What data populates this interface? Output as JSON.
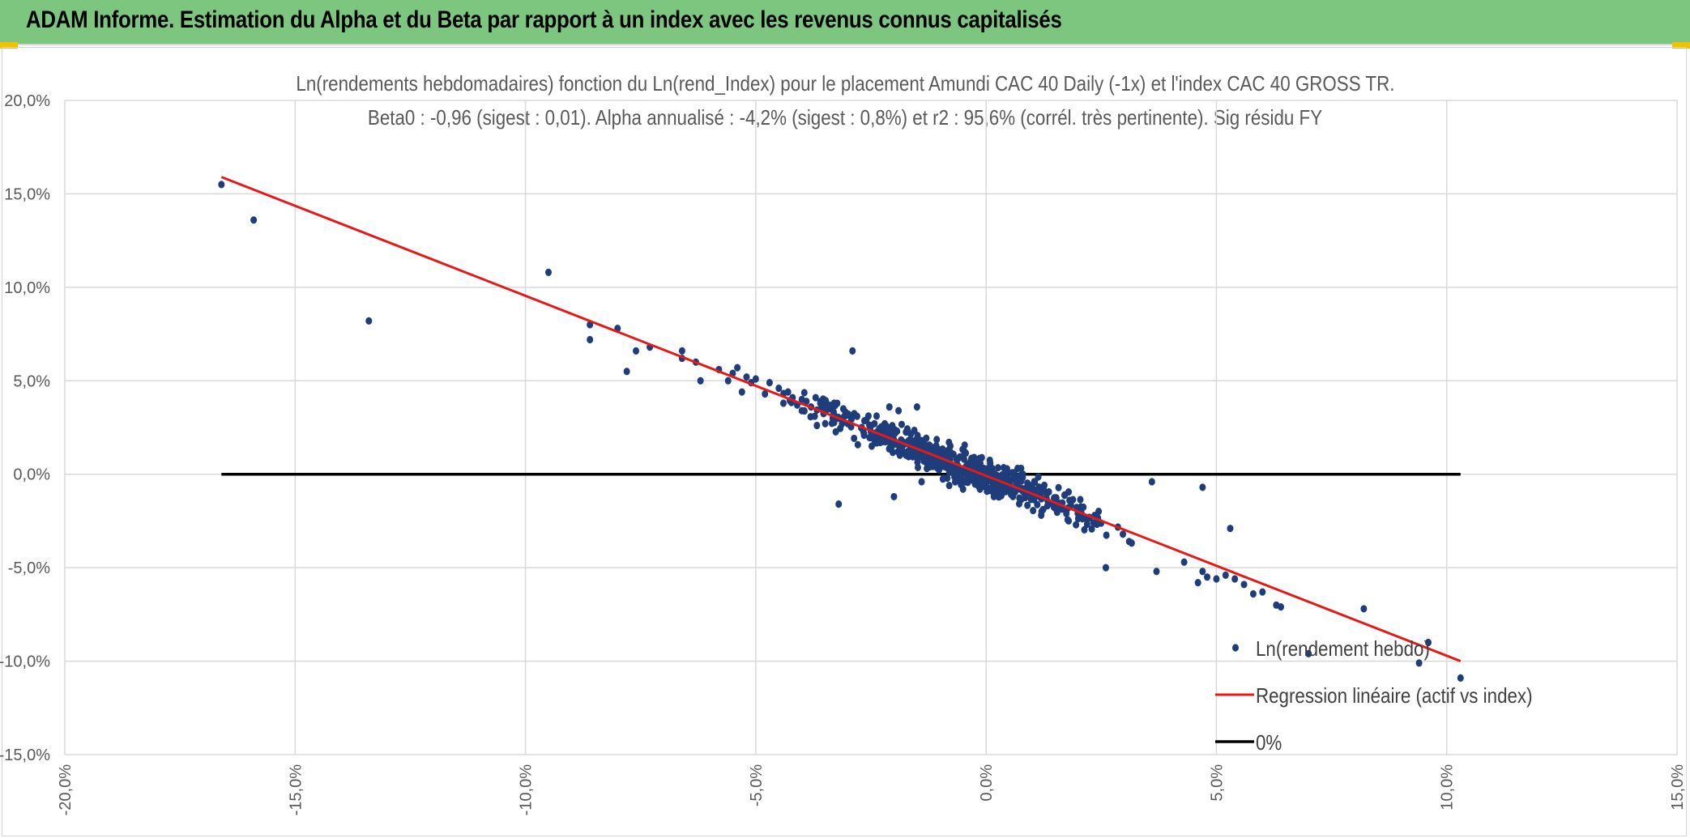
{
  "banner": {
    "title": "ADAM Informe. Estimation du Alpha et du Beta par rapport à un index avec les revenus connus capitalisés",
    "background": "#7dc67f",
    "accent": "#f2c200"
  },
  "chart_data": {
    "type": "scatter",
    "title": "Ln(rendements hebdomadaires) fonction du Ln(rend_Index) pour le placement Amundi CAC 40 Daily (-1x) et l'index CAC 40 GROSS TR.",
    "subtitle": "Beta0 : -0,96 (sigest : 0,01). Alpha annualisé : -4,2% (sigest : 0,8%) et r2 : 95,6% (corrél. très pertinente). Sig résidu FY",
    "xlabel": "",
    "ylabel": "",
    "xlim": [
      -0.2,
      0.15
    ],
    "ylim": [
      -0.15,
      0.2
    ],
    "x_tick_labels": [
      "-20,0%",
      "-15,0%",
      "-10,0%",
      "-5,0%",
      "0,0%",
      "5,0%",
      "10,0%",
      "15,0%"
    ],
    "y_tick_labels": [
      "20,0%",
      "15,0%",
      "10,0%",
      "5,0%",
      "0,0%",
      "-5,0%",
      "-10,0%",
      "-15,0%"
    ],
    "grid": true,
    "legend_position": "bottom-right",
    "series": [
      {
        "name": "Ln(rendement hebdo)",
        "kind": "scatter",
        "color": "#1f3d7a",
        "points": [
          [
            -0.166,
            0.155
          ],
          [
            -0.159,
            0.136
          ],
          [
            -0.134,
            0.082
          ],
          [
            -0.095,
            0.108
          ],
          [
            -0.086,
            0.08
          ],
          [
            -0.086,
            0.072
          ],
          [
            -0.08,
            0.078
          ],
          [
            -0.076,
            0.066
          ],
          [
            -0.078,
            0.055
          ],
          [
            -0.073,
            0.068
          ],
          [
            -0.066,
            0.066
          ],
          [
            -0.066,
            0.062
          ],
          [
            -0.063,
            0.06
          ],
          [
            -0.062,
            0.05
          ],
          [
            -0.058,
            0.056
          ],
          [
            -0.056,
            0.05
          ],
          [
            -0.055,
            0.054
          ],
          [
            -0.054,
            0.057
          ],
          [
            -0.053,
            0.044
          ],
          [
            -0.052,
            0.052
          ],
          [
            -0.051,
            0.049
          ],
          [
            -0.05,
            0.051
          ],
          [
            -0.048,
            0.043
          ],
          [
            -0.047,
            0.049
          ],
          [
            -0.045,
            0.046
          ],
          [
            -0.044,
            0.038
          ],
          [
            -0.043,
            0.044
          ],
          [
            -0.042,
            0.041
          ],
          [
            -0.041,
            0.037
          ],
          [
            -0.04,
            0.04
          ],
          [
            -0.04,
            0.034
          ],
          [
            -0.039,
            0.039
          ],
          [
            -0.038,
            0.036
          ],
          [
            -0.037,
            0.041
          ],
          [
            -0.036,
            0.038
          ],
          [
            -0.035,
            0.034
          ],
          [
            -0.034,
            0.037
          ],
          [
            -0.033,
            0.032
          ],
          [
            -0.033,
            0.038
          ],
          [
            -0.032,
            0.03
          ],
          [
            -0.031,
            0.035
          ],
          [
            -0.03,
            0.027
          ],
          [
            -0.03,
            0.032
          ],
          [
            -0.029,
            0.066
          ],
          [
            -0.028,
            0.031
          ],
          [
            -0.027,
            0.025
          ],
          [
            -0.026,
            0.029
          ],
          [
            -0.025,
            0.026
          ],
          [
            -0.024,
            0.022
          ],
          [
            -0.032,
            -0.016
          ],
          [
            -0.022,
            0.027
          ],
          [
            -0.021,
            0.036
          ],
          [
            -0.02,
            -0.012
          ],
          [
            -0.019,
            0.034
          ],
          [
            -0.015,
            0.036
          ],
          [
            -0.014,
            -0.004
          ],
          [
            -0.012,
            0.005
          ],
          [
            -0.008,
            -0.006
          ],
          [
            -0.005,
            -0.008
          ],
          [
            0.008,
            0.0
          ],
          [
            0.01,
            -0.009
          ],
          [
            0.036,
            -0.004
          ],
          [
            0.047,
            -0.007
          ],
          [
            0.026,
            -0.05
          ],
          [
            0.037,
            -0.052
          ],
          [
            0.043,
            -0.047
          ],
          [
            0.046,
            -0.058
          ],
          [
            0.047,
            -0.052
          ],
          [
            0.048,
            -0.055
          ],
          [
            0.05,
            -0.056
          ],
          [
            0.052,
            -0.054
          ],
          [
            0.053,
            -0.029
          ],
          [
            0.054,
            -0.056
          ],
          [
            0.056,
            -0.059
          ],
          [
            0.058,
            -0.064
          ],
          [
            0.06,
            -0.063
          ],
          [
            0.063,
            -0.07
          ],
          [
            0.064,
            -0.071
          ],
          [
            0.07,
            -0.096
          ],
          [
            0.082,
            -0.072
          ],
          [
            0.094,
            -0.101
          ],
          [
            0.096,
            -0.09
          ],
          [
            0.103,
            -0.109
          ]
        ]
      },
      {
        "name": "Regression linéaire (actif vs index)",
        "kind": "line",
        "color": "#e41a1a",
        "points": [
          [
            -0.166,
            0.159
          ],
          [
            0.103,
            -0.1
          ]
        ]
      },
      {
        "name": "0%",
        "kind": "line",
        "color": "#000000",
        "points": [
          [
            -0.166,
            0.0
          ],
          [
            0.103,
            0.0
          ]
        ]
      }
    ]
  }
}
